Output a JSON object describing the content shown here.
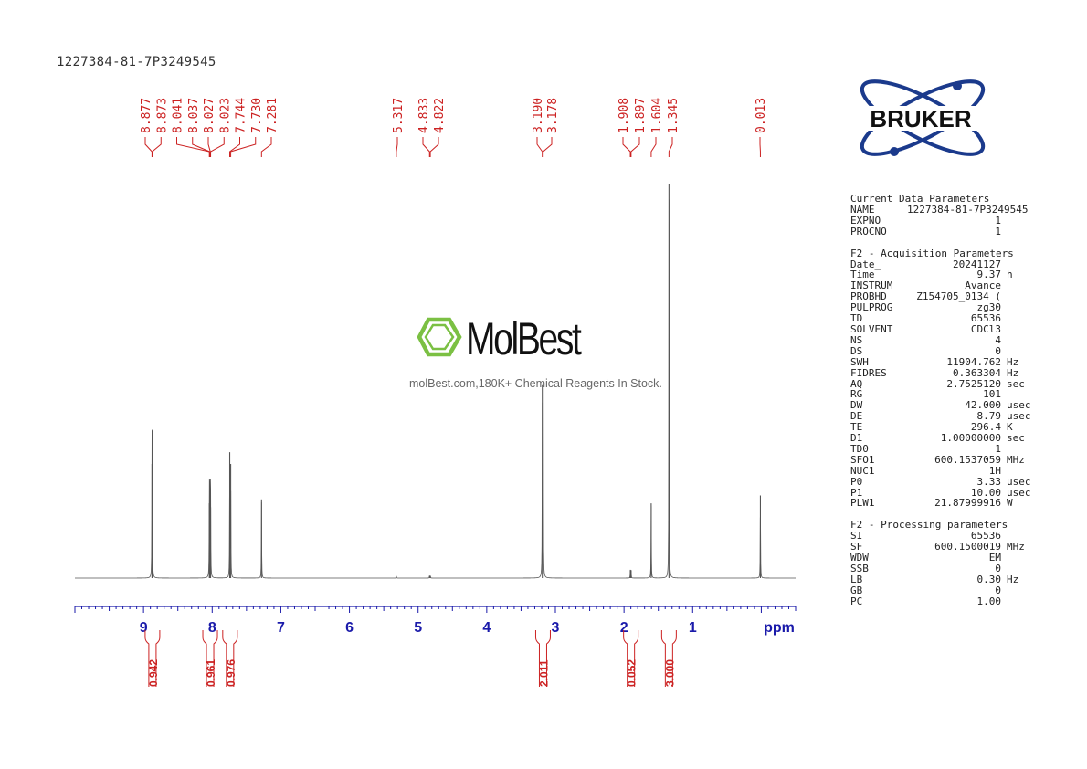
{
  "header": {
    "sample_id": "1227384-81-7P3249545"
  },
  "logos": {
    "bruker": "BRUKER",
    "molbest": "MolBest",
    "molbest_tagline": "molBest.com,180K+ Chemical Reagents In Stock."
  },
  "colors": {
    "spectrum": "#555555",
    "peak_labels": "#cc2222",
    "axis": "#1a1aaa",
    "integral": "#cc2222",
    "bruker_blue": "#1b3a8c",
    "molbest_green": "#7bc043"
  },
  "chart_data": {
    "type": "line",
    "title": "",
    "xlabel": "ppm",
    "ylabel": "",
    "xlim": [
      10.0,
      -0.5
    ],
    "x_reversed": true,
    "grid": false,
    "x_ticks": [
      9,
      8,
      7,
      6,
      5,
      4,
      3,
      2,
      1
    ],
    "x_tick_labels": [
      "9",
      "8",
      "7",
      "6",
      "5",
      "4",
      "3",
      "2",
      "1"
    ],
    "peaks": [
      {
        "ppm": 8.877,
        "label": "8.877",
        "height": 0.29
      },
      {
        "ppm": 8.873,
        "label": "8.873",
        "height": 0.29
      },
      {
        "ppm": 8.041,
        "label": "8.041",
        "height": 0.19
      },
      {
        "ppm": 8.037,
        "label": "8.037",
        "height": 0.19
      },
      {
        "ppm": 8.027,
        "label": "8.027",
        "height": 0.19
      },
      {
        "ppm": 8.023,
        "label": "8.023",
        "height": 0.18
      },
      {
        "ppm": 7.744,
        "label": "7.744",
        "height": 0.32
      },
      {
        "ppm": 7.73,
        "label": "7.730",
        "height": 0.29
      },
      {
        "ppm": 7.281,
        "label": "7.281",
        "height": 0.2
      },
      {
        "ppm": 5.317,
        "label": "5.317",
        "height": 0.005
      },
      {
        "ppm": 4.833,
        "label": "4.833",
        "height": 0.006
      },
      {
        "ppm": 4.822,
        "label": "4.822",
        "height": 0.006
      },
      {
        "ppm": 3.19,
        "label": "3.190",
        "height": 0.49
      },
      {
        "ppm": 3.178,
        "label": "3.178",
        "height": 0.49
      },
      {
        "ppm": 1.908,
        "label": "1.908",
        "height": 0.02
      },
      {
        "ppm": 1.897,
        "label": "1.897",
        "height": 0.02
      },
      {
        "ppm": 1.604,
        "label": "1.604",
        "height": 0.19
      },
      {
        "ppm": 1.345,
        "label": "1.345",
        "height": 1.0
      },
      {
        "ppm": 0.013,
        "label": "0.013",
        "height": 0.21
      }
    ],
    "integrals": [
      {
        "ppm": 8.87,
        "value": "0.942"
      },
      {
        "ppm": 8.03,
        "value": "0.961"
      },
      {
        "ppm": 7.74,
        "value": "0.976"
      },
      {
        "ppm": 3.18,
        "value": "2.011"
      },
      {
        "ppm": 1.9,
        "value": "0.052"
      },
      {
        "ppm": 1.345,
        "value": "3.000"
      }
    ]
  },
  "parameters": {
    "current": {
      "title": "Current Data Parameters",
      "rows": [
        {
          "key": "NAME",
          "value": "1227384-81-7P3249545",
          "unit": ""
        },
        {
          "key": "EXPNO",
          "value": "1",
          "unit": ""
        },
        {
          "key": "PROCNO",
          "value": "1",
          "unit": ""
        }
      ]
    },
    "acquisition": {
      "title": "F2 - Acquisition Parameters",
      "rows": [
        {
          "key": "Date_",
          "value": "20241127",
          "unit": ""
        },
        {
          "key": "Time",
          "value": "9.37",
          "unit": "h"
        },
        {
          "key": "INSTRUM",
          "value": "Avance",
          "unit": ""
        },
        {
          "key": "PROBHD",
          "value": "Z154705_0134 (",
          "unit": ""
        },
        {
          "key": "PULPROG",
          "value": "zg30",
          "unit": ""
        },
        {
          "key": "TD",
          "value": "65536",
          "unit": ""
        },
        {
          "key": "SOLVENT",
          "value": "CDCl3",
          "unit": ""
        },
        {
          "key": "NS",
          "value": "4",
          "unit": ""
        },
        {
          "key": "DS",
          "value": "0",
          "unit": ""
        },
        {
          "key": "SWH",
          "value": "11904.762",
          "unit": "Hz"
        },
        {
          "key": "FIDRES",
          "value": "0.363304",
          "unit": "Hz"
        },
        {
          "key": "AQ",
          "value": "2.7525120",
          "unit": "sec"
        },
        {
          "key": "RG",
          "value": "101",
          "unit": ""
        },
        {
          "key": "DW",
          "value": "42.000",
          "unit": "usec"
        },
        {
          "key": "DE",
          "value": "8.79",
          "unit": "usec"
        },
        {
          "key": "TE",
          "value": "296.4",
          "unit": "K"
        },
        {
          "key": "D1",
          "value": "1.00000000",
          "unit": "sec"
        },
        {
          "key": "TD0",
          "value": "1",
          "unit": ""
        },
        {
          "key": "SFO1",
          "value": "600.1537059",
          "unit": "MHz"
        },
        {
          "key": "NUC1",
          "value": "1H",
          "unit": ""
        },
        {
          "key": "P0",
          "value": "3.33",
          "unit": "usec"
        },
        {
          "key": "P1",
          "value": "10.00",
          "unit": "usec"
        },
        {
          "key": "PLW1",
          "value": "21.87999916",
          "unit": "W"
        }
      ]
    },
    "processing": {
      "title": "F2 - Processing parameters",
      "rows": [
        {
          "key": "SI",
          "value": "65536",
          "unit": ""
        },
        {
          "key": "SF",
          "value": "600.1500019",
          "unit": "MHz"
        },
        {
          "key": "WDW",
          "value": "EM",
          "unit": ""
        },
        {
          "key": "SSB",
          "value": "0",
          "unit": ""
        },
        {
          "key": "LB",
          "value": "0.30",
          "unit": "Hz"
        },
        {
          "key": "GB",
          "value": "0",
          "unit": ""
        },
        {
          "key": "PC",
          "value": "1.00",
          "unit": ""
        }
      ]
    }
  }
}
